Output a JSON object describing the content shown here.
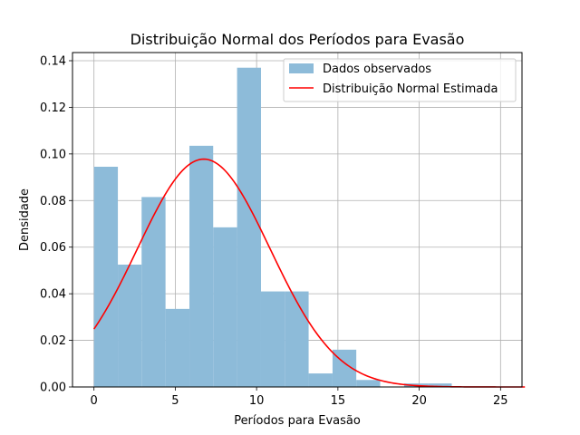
{
  "chart_data": {
    "type": "bar",
    "title": "Distribuição Normal dos Períodos para Evasão",
    "xlabel": "Períodos para Evasão",
    "ylabel": "Densidade",
    "xlim": [
      -1.32,
      26.32
    ],
    "ylim": [
      0,
      0.1435
    ],
    "xticks": [
      0,
      5,
      10,
      15,
      20,
      25
    ],
    "xtick_labels": [
      "0",
      "5",
      "10",
      "15",
      "20",
      "25"
    ],
    "yticks": [
      0,
      0.02,
      0.04,
      0.06,
      0.08,
      0.1,
      0.12,
      0.14
    ],
    "ytick_labels": [
      "0.00",
      "0.02",
      "0.04",
      "0.06",
      "0.08",
      "0.10",
      "0.12",
      "0.14"
    ],
    "grid": true,
    "legend_position": "top-right",
    "series": [
      {
        "name": "Dados observados",
        "kind": "histogram",
        "color": "#8dbbd9",
        "bin_edges": [
          0,
          1.47,
          2.93,
          4.4,
          5.87,
          7.33,
          8.8,
          10.27,
          11.73,
          13.2,
          14.67,
          16.13,
          17.6,
          19.07,
          20.53,
          22.0
        ],
        "values": [
          0.0945,
          0.0525,
          0.0815,
          0.0335,
          0.1035,
          0.0685,
          0.137,
          0.041,
          0.041,
          0.0058,
          0.016,
          0.003,
          0.0,
          0.0015,
          0.0015
        ]
      },
      {
        "name": "Distribuição Normal Estimada",
        "kind": "line",
        "color": "#ff0000",
        "mean": 6.75,
        "std": 4.08,
        "x_range": [
          0,
          26.5
        ]
      }
    ]
  }
}
